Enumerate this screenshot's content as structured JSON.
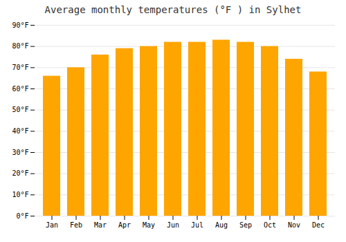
{
  "chart_data": {
    "type": "bar",
    "title": "Average monthly temperatures (°F ) in Sylhet",
    "categories": [
      "Jan",
      "Feb",
      "Mar",
      "Apr",
      "May",
      "Jun",
      "Jul",
      "Aug",
      "Sep",
      "Oct",
      "Nov",
      "Dec"
    ],
    "values": [
      66,
      70,
      76,
      79,
      80,
      82,
      82,
      83,
      82,
      80,
      74,
      68
    ],
    "color": "#FFA500",
    "ylim": [
      0,
      90
    ],
    "yticks": [
      {
        "value": 0,
        "label": "0°F"
      },
      {
        "value": 10,
        "label": "10°F"
      },
      {
        "value": 20,
        "label": "20°F"
      },
      {
        "value": 30,
        "label": "30°F"
      },
      {
        "value": 40,
        "label": "40°F"
      },
      {
        "value": 50,
        "label": "50°F"
      },
      {
        "value": 60,
        "label": "60°F"
      },
      {
        "value": 70,
        "label": "70°F"
      },
      {
        "value": 80,
        "label": "80°F"
      },
      {
        "value": 90,
        "label": "90°F"
      }
    ],
    "grid": true
  }
}
